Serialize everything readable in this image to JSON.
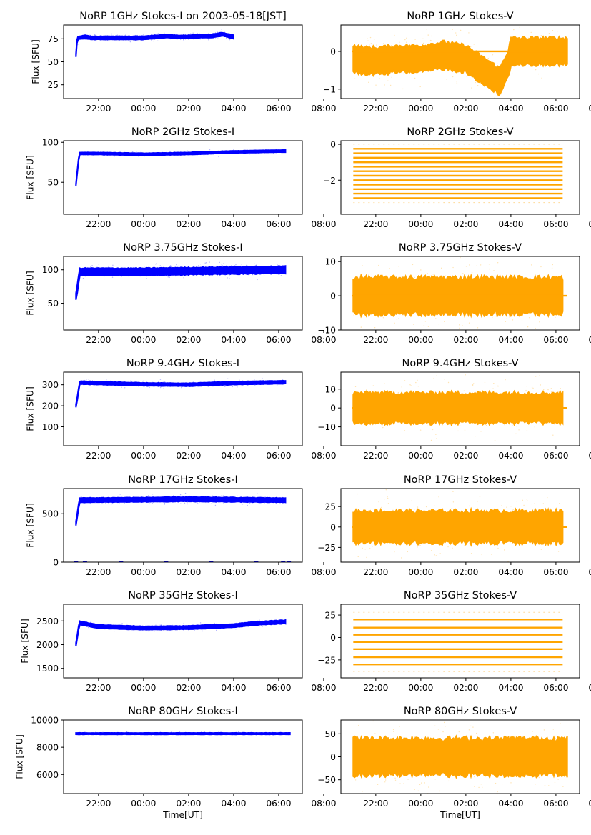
{
  "figure": {
    "xlabel": "Time[UT]",
    "x_tick_labels": [
      "22:00",
      "00:00",
      "02:00",
      "04:00",
      "06:00",
      "08:00"
    ],
    "colors": {
      "stokes_i": "#0000ff",
      "stokes_v": "#ffa500"
    }
  },
  "chart_data": [
    {
      "type": "scatter",
      "panel": "1GHz-I",
      "title": "NoRP 1GHz Stokes-I on 2003-05-18[JST]",
      "xlabel": "",
      "ylabel": "Flux [SFU]",
      "x_range_hours": [
        -1.55,
        9.05
      ],
      "ylim": [
        10,
        90
      ],
      "yticks": [
        25,
        50,
        75
      ],
      "series": [
        {
          "name": "Stokes-I",
          "color": "#0000ff",
          "x_hours": [
            -1.0,
            -0.95,
            -0.9,
            -0.6,
            -0.3,
            0.0,
            1.0,
            2.0,
            3.0,
            3.5,
            4.0,
            4.5,
            5.0,
            5.5,
            6.0
          ],
          "y": [
            57,
            74,
            76,
            77,
            76,
            76,
            76,
            76,
            78,
            77,
            77,
            78,
            78,
            80,
            77
          ],
          "spread": 2
        }
      ]
    },
    {
      "type": "scatter",
      "panel": "1GHz-V",
      "title": "NoRP 1GHz Stokes-V",
      "xlabel": "",
      "ylabel": "",
      "x_range_hours": [
        -1.55,
        9.05
      ],
      "ylim": [
        -1.25,
        0.7
      ],
      "yticks": [
        -1,
        0
      ],
      "series": [
        {
          "name": "Stokes-V",
          "color": "#ffa500",
          "x_hours": [
            -1.0,
            -0.5,
            0.0,
            1.0,
            2.0,
            3.0,
            4.0,
            4.5,
            5.0,
            5.5,
            5.9,
            6.0,
            8.5
          ],
          "y": [
            -0.2,
            -0.25,
            -0.25,
            -0.2,
            -0.2,
            -0.1,
            -0.2,
            -0.4,
            -0.6,
            -0.8,
            -0.3,
            0.0,
            0.0
          ],
          "spread": 0.4
        }
      ]
    },
    {
      "type": "scatter",
      "panel": "2GHz-I",
      "title": "NoRP 2GHz Stokes-I",
      "xlabel": "",
      "ylabel": "Flux [SFU]",
      "x_range_hours": [
        -1.55,
        9.05
      ],
      "ylim": [
        10,
        102
      ],
      "yticks": [
        50,
        100
      ],
      "series": [
        {
          "name": "Stokes-I",
          "color": "#0000ff",
          "x_hours": [
            -1.0,
            -0.9,
            -0.85,
            0.0,
            2.0,
            4.0,
            6.0,
            8.0,
            8.3
          ],
          "y": [
            47,
            75,
            86,
            86,
            85,
            86,
            88,
            89,
            89
          ],
          "spread": 1.5
        }
      ]
    },
    {
      "type": "scatter",
      "panel": "2GHz-V",
      "title": "NoRP 2GHz Stokes-V",
      "xlabel": "",
      "ylabel": "",
      "x_range_hours": [
        -1.55,
        9.05
      ],
      "ylim": [
        -3.9,
        0.2
      ],
      "yticks": [
        -2,
        0
      ],
      "levels": [
        0,
        -0.25,
        -0.5,
        -0.75,
        -1.0,
        -1.25,
        -1.5,
        -1.75,
        -2.0,
        -2.25,
        -2.5,
        -2.75,
        -3.0,
        -3.25
      ],
      "series": [
        {
          "name": "Stokes-V",
          "color": "#ffa500",
          "x_hours": [
            -1.0,
            8.3
          ]
        }
      ]
    },
    {
      "type": "scatter",
      "panel": "3.75GHz-I",
      "title": "NoRP 3.75GHz Stokes-I",
      "xlabel": "",
      "ylabel": "Flux [SFU]",
      "x_range_hours": [
        -1.55,
        9.05
      ],
      "ylim": [
        10,
        120
      ],
      "yticks": [
        50,
        100
      ],
      "series": [
        {
          "name": "Stokes-I",
          "color": "#0000ff",
          "x_hours": [
            -1.0,
            -0.9,
            -0.85,
            2.0,
            4.0,
            6.0,
            8.3
          ],
          "y": [
            60,
            80,
            97,
            97,
            98,
            99,
            100
          ],
          "spread": 6
        }
      ]
    },
    {
      "type": "scatter",
      "panel": "3.75GHz-V",
      "title": "NoRP 3.75GHz Stokes-V",
      "xlabel": "",
      "ylabel": "",
      "x_range_hours": [
        -1.55,
        9.05
      ],
      "ylim": [
        -10,
        11.5
      ],
      "yticks": [
        -10,
        0,
        10
      ],
      "series": [
        {
          "name": "Stokes-V",
          "color": "#ffa500",
          "x_hours": [
            -1.0,
            8.3
          ],
          "y": [
            0,
            0
          ],
          "spread": 6
        }
      ]
    },
    {
      "type": "scatter",
      "panel": "9.4GHz-I",
      "title": "NoRP 9.4GHz Stokes-I",
      "xlabel": "",
      "ylabel": "Flux [SFU]",
      "x_range_hours": [
        -1.55,
        9.05
      ],
      "ylim": [
        10,
        360
      ],
      "yticks": [
        100,
        200,
        300
      ],
      "series": [
        {
          "name": "Stokes-I",
          "color": "#0000ff",
          "x_hours": [
            -1.0,
            -0.9,
            -0.85,
            0.0,
            2.0,
            4.0,
            6.0,
            8.3
          ],
          "y": [
            200,
            260,
            310,
            308,
            302,
            300,
            308,
            312
          ],
          "spread": 8
        }
      ]
    },
    {
      "type": "scatter",
      "panel": "9.4GHz-V",
      "title": "NoRP 9.4GHz Stokes-V",
      "xlabel": "",
      "ylabel": "",
      "x_range_hours": [
        -1.55,
        9.05
      ],
      "ylim": [
        -20,
        19
      ],
      "yticks": [
        -10,
        0,
        10
      ],
      "series": [
        {
          "name": "Stokes-V",
          "color": "#ffa500",
          "x_hours": [
            -1.0,
            8.3
          ],
          "y": [
            0,
            0
          ],
          "spread": 9
        }
      ]
    },
    {
      "type": "scatter",
      "panel": "17GHz-I",
      "title": "NoRP 17GHz Stokes-I",
      "xlabel": "",
      "ylabel": "Flux [SFU]",
      "x_range_hours": [
        -1.55,
        9.05
      ],
      "ylim": [
        0,
        760
      ],
      "yticks": [
        0,
        500
      ],
      "series": [
        {
          "name": "Stokes-I",
          "color": "#0000ff",
          "x_hours": [
            -1.0,
            -0.9,
            -0.85,
            2.0,
            4.0,
            6.0,
            8.3
          ],
          "y": [
            400,
            550,
            640,
            645,
            650,
            645,
            640
          ],
          "spread": 25
        }
      ]
    },
    {
      "type": "scatter",
      "panel": "17GHz-V",
      "title": "NoRP 17GHz Stokes-V",
      "xlabel": "",
      "ylabel": "",
      "x_range_hours": [
        -1.55,
        9.05
      ],
      "ylim": [
        -43,
        47
      ],
      "yticks": [
        -25,
        0,
        25
      ],
      "series": [
        {
          "name": "Stokes-V",
          "color": "#ffa500",
          "x_hours": [
            -1.0,
            8.3
          ],
          "y": [
            0,
            0
          ],
          "spread": 22
        }
      ]
    },
    {
      "type": "scatter",
      "panel": "35GHz-I",
      "title": "NoRP 35GHz Stokes-I",
      "xlabel": "",
      "ylabel": "Flux [SFU]",
      "x_range_hours": [
        -1.55,
        9.05
      ],
      "ylim": [
        1300,
        2850
      ],
      "yticks": [
        1500,
        2000,
        2500
      ],
      "series": [
        {
          "name": "Stokes-I",
          "color": "#0000ff",
          "x_hours": [
            -1.0,
            -0.9,
            -0.85,
            0.0,
            2.0,
            4.0,
            6.0,
            7.0,
            8.3
          ],
          "y": [
            2000,
            2300,
            2460,
            2380,
            2350,
            2360,
            2400,
            2450,
            2480
          ],
          "spread": 40
        }
      ]
    },
    {
      "type": "scatter",
      "panel": "35GHz-V",
      "title": "NoRP 35GHz Stokes-V",
      "xlabel": "",
      "ylabel": "",
      "x_range_hours": [
        -1.55,
        9.05
      ],
      "ylim": [
        -45,
        37
      ],
      "yticks": [
        -25,
        0,
        25
      ],
      "levels": [
        28,
        20,
        11,
        3,
        -5,
        -13,
        -22,
        -30,
        -38
      ],
      "series": [
        {
          "name": "Stokes-V",
          "color": "#ffa500",
          "x_hours": [
            -1.0,
            8.3
          ]
        }
      ]
    },
    {
      "type": "scatter",
      "panel": "80GHz-I",
      "title": "NoRP 80GHz Stokes-I",
      "xlabel": "Time[UT]",
      "ylabel": "Flux [SFU]",
      "x_range_hours": [
        -1.55,
        9.05
      ],
      "ylim": [
        4600,
        10000
      ],
      "yticks": [
        6000,
        8000,
        10000
      ],
      "series": [
        {
          "name": "Stokes-I",
          "color": "#0000ff",
          "x_hours": [
            -1.0,
            8.5
          ],
          "y": [
            9000,
            9000
          ],
          "spread": 60
        }
      ]
    },
    {
      "type": "scatter",
      "panel": "80GHz-V",
      "title": "NoRP 80GHz Stokes-V",
      "xlabel": "Time[UT]",
      "ylabel": "",
      "x_range_hours": [
        -1.55,
        9.05
      ],
      "ylim": [
        -80,
        80
      ],
      "yticks": [
        -50,
        0,
        50
      ],
      "series": [
        {
          "name": "Stokes-V",
          "color": "#ffa500",
          "x_hours": [
            -1.0,
            8.5
          ],
          "y": [
            0,
            0
          ],
          "spread": 45
        }
      ]
    }
  ]
}
